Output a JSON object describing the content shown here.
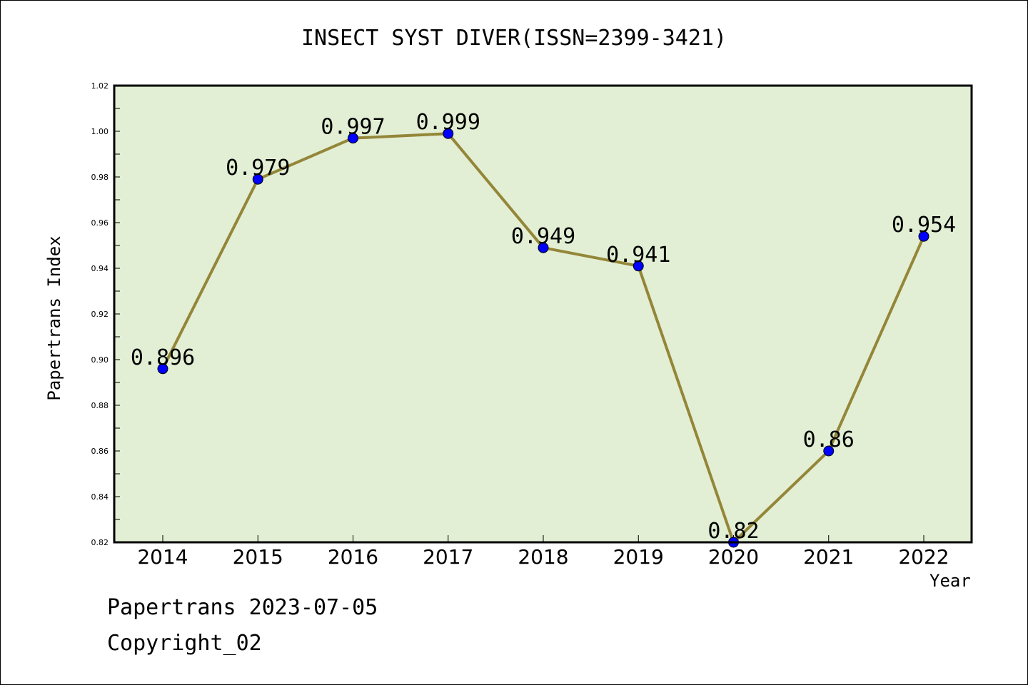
{
  "chart_data": {
    "type": "line",
    "title": "INSECT SYST DIVER(ISSN=2399-3421)",
    "xlabel": "Year",
    "ylabel": "Papertrans Index",
    "categories": [
      "2014",
      "2015",
      "2016",
      "2017",
      "2018",
      "2019",
      "2020",
      "2021",
      "2022"
    ],
    "series": [
      {
        "values": [
          0.896,
          0.979,
          0.997,
          0.999,
          0.949,
          0.941,
          0.82,
          0.86,
          0.954
        ],
        "labels": [
          "0.896",
          "0.979",
          "0.997",
          "0.999",
          "0.949",
          "0.941",
          "0.82",
          "0.86",
          "0.954"
        ]
      }
    ],
    "ylim": [
      0.82,
      1.02
    ],
    "yticks": [
      "0.82",
      "0.84",
      "0.86",
      "0.88",
      "0.90",
      "0.92",
      "0.94",
      "0.96",
      "0.98",
      "1.00",
      "1.02"
    ],
    "grid": false,
    "colors": {
      "plot_background": "#e2efd4",
      "line": "#948639",
      "marker": "#0000ff"
    }
  },
  "footer": {
    "line1": "Papertrans 2023-07-05",
    "line2": "Copyright_02"
  }
}
